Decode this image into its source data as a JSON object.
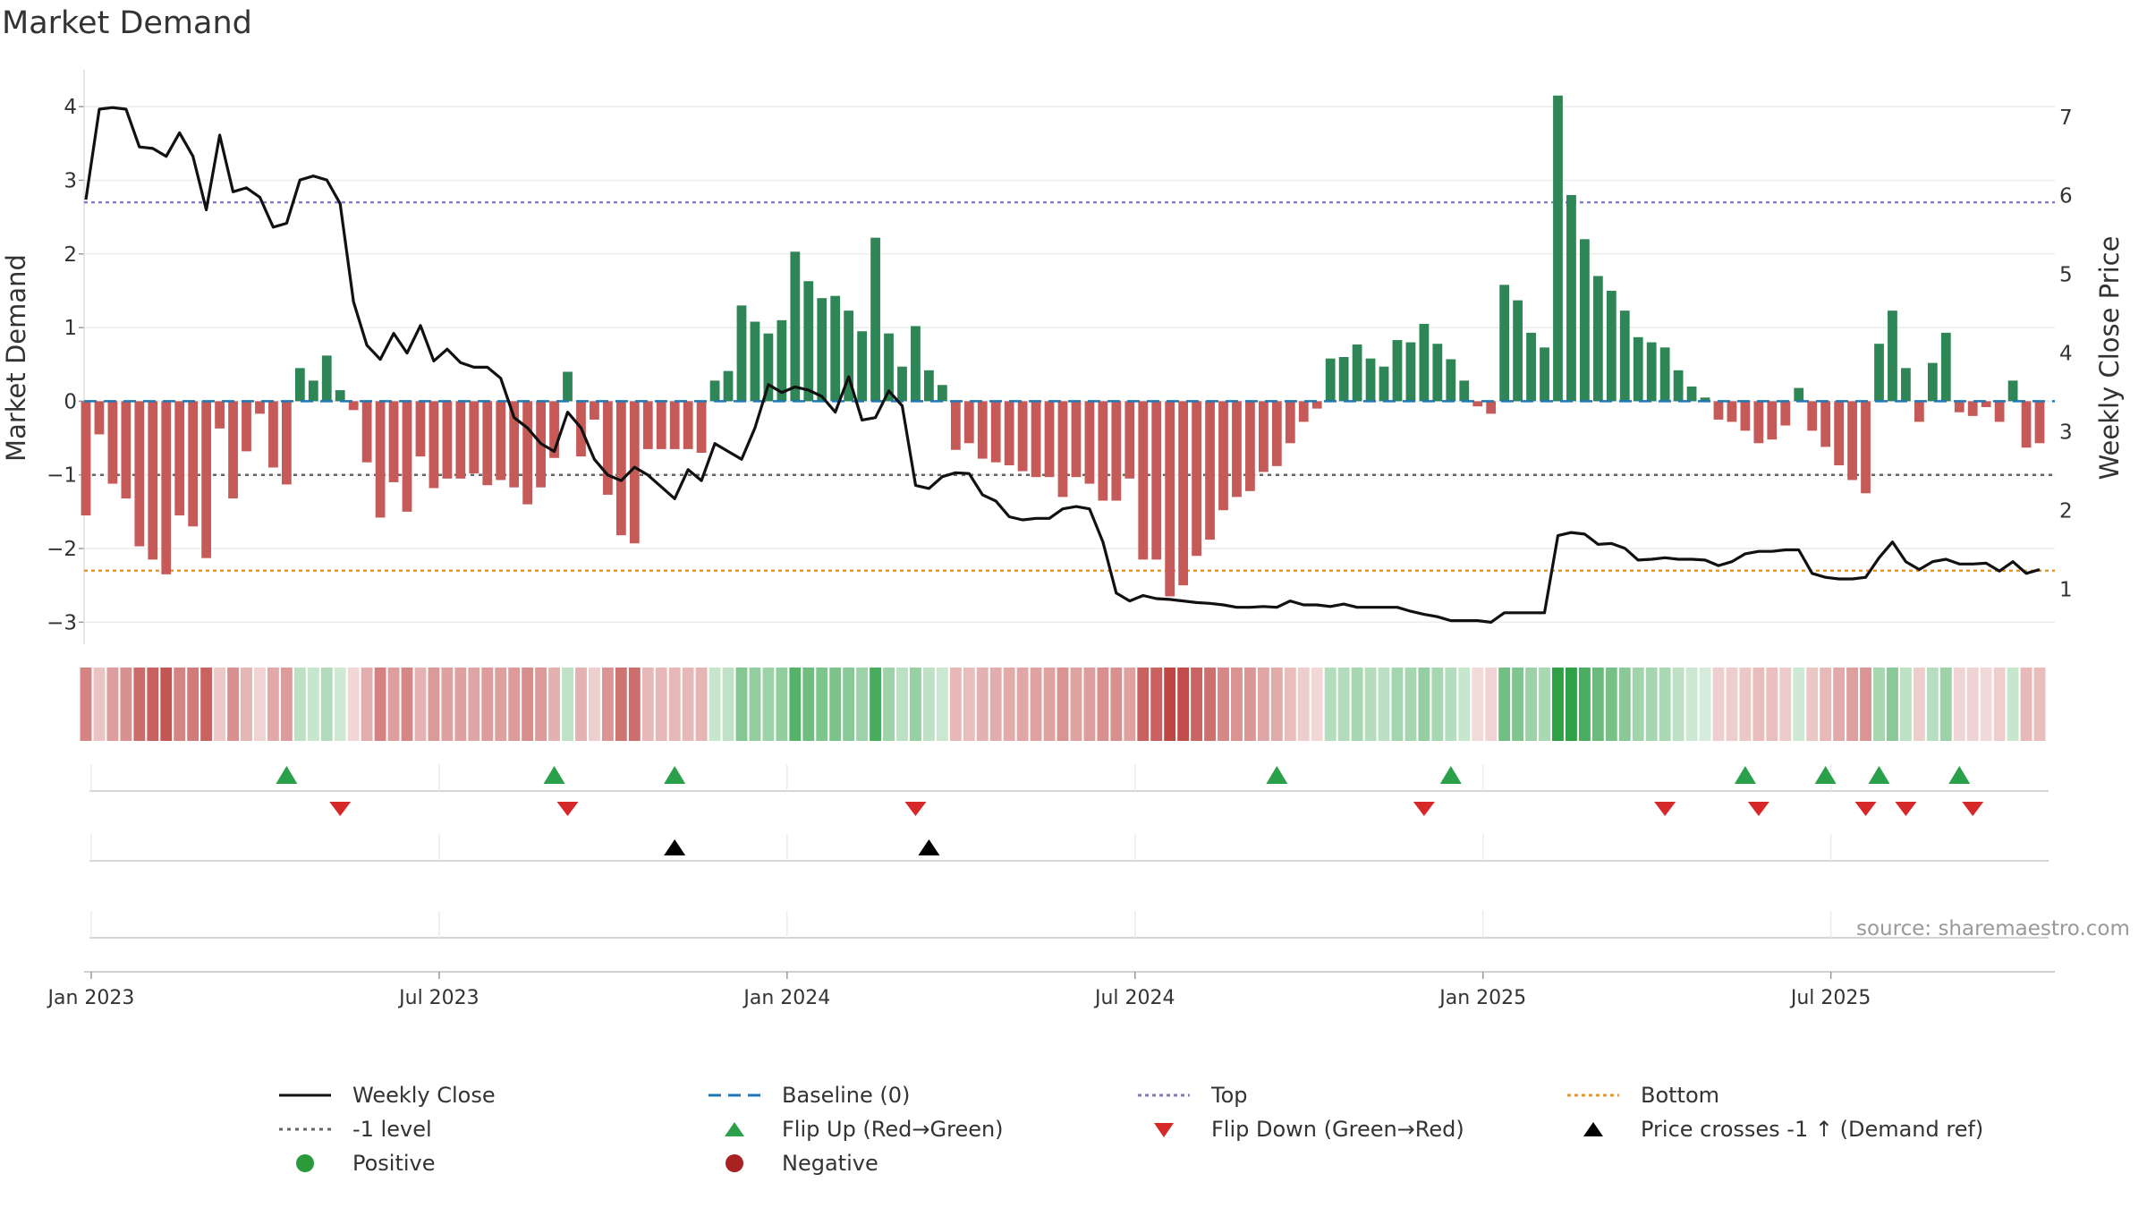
{
  "chart_data": {
    "type": "bar",
    "title": "Market Demand",
    "ylabel_left": "Market Demand",
    "ylabel_right": "Weekly Close Price",
    "left_ylim": [
      -3.3,
      4.5
    ],
    "right_ylim": [
      0.3,
      7.6
    ],
    "left_ticks": [
      4,
      3,
      2,
      1,
      0,
      -1,
      -2,
      -3
    ],
    "left_tick_labels": [
      "4",
      "3",
      "2",
      "1",
      "0",
      "−1",
      "−2",
      "−3"
    ],
    "right_ticks": [
      7,
      6,
      5,
      4,
      3,
      2,
      1
    ],
    "right_tick_labels": [
      "7",
      "6",
      "5",
      "4",
      "3",
      "2",
      "1"
    ],
    "x_tick_labels": [
      "Jan 2023",
      "Jul 2023",
      "Jan 2024",
      "Jul 2024",
      "Jan 2025",
      "Jul 2025"
    ],
    "x_tick_weeks": [
      1,
      27,
      53,
      79,
      105,
      131
    ],
    "reference_lines": {
      "top": 2.7,
      "bottom": -2.3,
      "minus_one": -1,
      "baseline": 0
    },
    "demand": [
      -1.55,
      -0.45,
      -1.12,
      -1.32,
      -1.97,
      -2.15,
      -2.35,
      -1.55,
      -1.7,
      -2.13,
      -0.37,
      -1.32,
      -0.68,
      -0.17,
      -0.9,
      -1.13,
      0.45,
      0.28,
      0.62,
      0.15,
      -0.12,
      -0.83,
      -1.58,
      -1.1,
      -1.5,
      -0.75,
      -1.18,
      -1.05,
      -1.05,
      -0.98,
      -1.14,
      -1.07,
      -1.17,
      -1.4,
      -1.17,
      -0.77,
      0.4,
      -0.75,
      -0.25,
      -1.27,
      -1.82,
      -1.93,
      -0.65,
      -0.65,
      -0.65,
      -0.65,
      -0.7,
      0.28,
      0.41,
      1.3,
      1.08,
      0.92,
      1.1,
      2.03,
      1.63,
      1.4,
      1.43,
      1.23,
      0.95,
      2.22,
      0.92,
      0.47,
      1.02,
      0.42,
      0.22,
      -0.66,
      -0.57,
      -0.78,
      -0.83,
      -0.87,
      -0.95,
      -1.03,
      -1.03,
      -1.3,
      -1.03,
      -1.12,
      -1.35,
      -1.35,
      -1.05,
      -2.15,
      -2.15,
      -2.65,
      -2.5,
      -2.1,
      -1.88,
      -1.48,
      -1.3,
      -1.22,
      -0.96,
      -0.88,
      -0.57,
      -0.28,
      -0.1,
      0.58,
      0.6,
      0.77,
      0.58,
      0.47,
      0.83,
      0.8,
      1.05,
      0.78,
      0.57,
      0.28,
      -0.07,
      -0.17,
      1.58,
      1.37,
      0.93,
      0.73,
      4.15,
      2.8,
      2.2,
      1.7,
      1.5,
      1.23,
      0.87,
      0.8,
      0.73,
      0.42,
      0.2,
      0.05,
      -0.25,
      -0.28,
      -0.4,
      -0.57,
      -0.52,
      -0.33,
      0.18,
      -0.4,
      -0.62,
      -0.87,
      -1.07,
      -1.25,
      0.78,
      1.23,
      0.45,
      -0.28,
      0.52,
      0.93,
      -0.15,
      -0.2,
      -0.08,
      -0.28,
      0.28,
      -0.63,
      -0.57
    ],
    "weekly_close": [
      5.95,
      7.1,
      7.12,
      7.1,
      6.62,
      6.6,
      6.5,
      6.8,
      6.5,
      5.82,
      6.77,
      6.05,
      6.1,
      5.98,
      5.6,
      5.65,
      6.2,
      6.25,
      6.2,
      5.9,
      4.65,
      4.1,
      3.92,
      4.25,
      4.0,
      4.35,
      3.9,
      4.05,
      3.88,
      3.82,
      3.82,
      3.68,
      3.18,
      3.05,
      2.85,
      2.75,
      3.25,
      3.05,
      2.65,
      2.45,
      2.38,
      2.55,
      2.45,
      2.3,
      2.15,
      2.52,
      2.38,
      2.85,
      2.75,
      2.65,
      3.05,
      3.6,
      3.5,
      3.57,
      3.53,
      3.45,
      3.25,
      3.7,
      3.15,
      3.18,
      3.52,
      3.33,
      2.32,
      2.28,
      2.43,
      2.48,
      2.47,
      2.2,
      2.12,
      1.92,
      1.88,
      1.9,
      1.9,
      2.02,
      2.05,
      2.02,
      1.6,
      0.95,
      0.85,
      0.92,
      0.88,
      0.87,
      0.85,
      0.83,
      0.82,
      0.8,
      0.77,
      0.77,
      0.78,
      0.77,
      0.85,
      0.8,
      0.8,
      0.78,
      0.81,
      0.77,
      0.77,
      0.77,
      0.77,
      0.72,
      0.68,
      0.65,
      0.6,
      0.6,
      0.6,
      0.58,
      0.7,
      0.7,
      0.7,
      0.7,
      1.68,
      1.72,
      1.7,
      1.57,
      1.58,
      1.52,
      1.37,
      1.38,
      1.4,
      1.38,
      1.38,
      1.37,
      1.3,
      1.35,
      1.45,
      1.48,
      1.48,
      1.5,
      1.5,
      1.2,
      1.15,
      1.13,
      1.13,
      1.15,
      1.4,
      1.6,
      1.35,
      1.25,
      1.35,
      1.38,
      1.32,
      1.32,
      1.33,
      1.23,
      1.35,
      1.2,
      1.25
    ],
    "events": {
      "flip_up_weeks": [
        16,
        36,
        45,
        90,
        103,
        125,
        131,
        135,
        141
      ],
      "flip_down_weeks": [
        20,
        37,
        63,
        101,
        119,
        126,
        134,
        137,
        142
      ],
      "price_cross_weeks": [
        45,
        64
      ]
    }
  },
  "header": {
    "title": "Market Demand"
  },
  "footer": {
    "source": "source: sharemaestro.com"
  },
  "legend": {
    "weekly_close": "Weekly Close",
    "baseline": "Baseline (0)",
    "top": "Top",
    "bottom": "Bottom",
    "minus_one": "-1 level",
    "flip_up": "Flip Up (Red→Green)",
    "flip_down": "Flip Down (Green→Red)",
    "price_cross": "Price crosses -1 ↑ (Demand ref)",
    "positive": "Positive",
    "negative": "Negative"
  },
  "colors": {
    "positive_bar": "#2e8555",
    "negative_bar": "#c65a58",
    "close_line": "#111111",
    "baseline": "#1f77b4",
    "top_line": "#8080c0",
    "bottom_line": "#e69a2e",
    "minus_one_line": "#666666",
    "flip_up": "#2aa04a",
    "flip_down": "#d62828",
    "price_cross": "#000000",
    "positive_dot": "#2a9a3a",
    "negative_dot": "#a82222"
  }
}
